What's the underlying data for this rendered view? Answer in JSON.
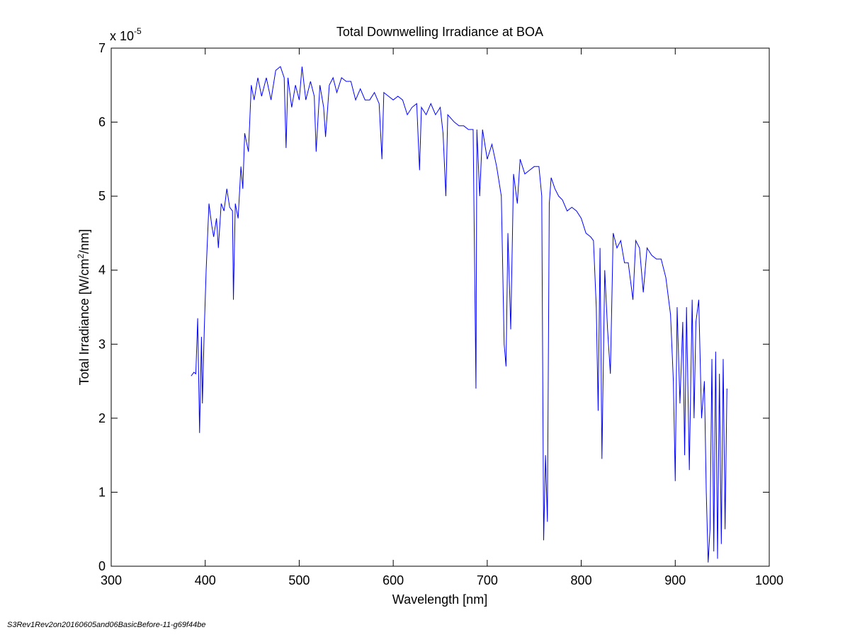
{
  "chart_data": {
    "type": "line",
    "title": "Total Downwelling Irradiance at BOA",
    "xlabel": "Wavelength [nm]",
    "ylabel": [
      "Total Irradiance [W/cm",
      "2",
      "/nm]"
    ],
    "y_multiplier": [
      "x 10",
      "-5"
    ],
    "footer": "S3Rev1Rev2on20160605and06BasicBefore-11-g69f44be",
    "color": "#0000ff",
    "xlim": [
      300,
      1000
    ],
    "xticks": [
      300,
      400,
      500,
      600,
      700,
      800,
      900,
      1000
    ],
    "ylim": [
      0,
      7
    ],
    "yticks": [
      0,
      1,
      2,
      3,
      4,
      5,
      6,
      7
    ],
    "x": [
      385,
      388,
      390,
      392,
      394,
      396,
      397,
      399,
      401,
      404,
      407,
      409,
      412,
      414,
      417,
      420,
      423,
      426,
      429,
      430,
      432,
      435,
      438,
      440,
      442,
      446,
      449,
      452,
      456,
      460,
      465,
      470,
      475,
      480,
      484,
      486,
      488,
      492,
      496,
      500,
      503,
      507,
      512,
      516,
      518,
      522,
      526,
      528,
      532,
      536,
      540,
      545,
      550,
      555,
      560,
      565,
      570,
      575,
      580,
      585,
      588,
      590,
      595,
      600,
      605,
      610,
      615,
      620,
      625,
      628,
      630,
      635,
      640,
      645,
      650,
      653,
      656,
      658,
      665,
      670,
      675,
      680,
      685,
      688,
      689,
      692,
      695,
      700,
      705,
      710,
      715,
      718,
      720,
      722,
      725,
      728,
      732,
      735,
      740,
      745,
      750,
      755,
      758,
      760,
      762,
      764,
      766,
      768,
      772,
      776,
      780,
      785,
      790,
      795,
      800,
      805,
      810,
      813,
      816,
      818,
      820,
      822,
      825,
      828,
      831,
      834,
      838,
      842,
      846,
      850,
      855,
      858,
      862,
      866,
      870,
      875,
      880,
      885,
      890,
      895,
      898,
      900,
      902,
      905,
      908,
      910,
      912,
      915,
      918,
      920,
      922,
      925,
      928,
      931,
      933,
      935,
      937,
      939,
      941,
      943,
      945,
      947,
      949,
      951,
      953,
      955
    ],
    "values": [
      2.57,
      2.62,
      2.6,
      3.35,
      1.8,
      3.1,
      2.2,
      3.2,
      4.0,
      4.9,
      4.6,
      4.45,
      4.7,
      4.3,
      4.9,
      4.8,
      5.1,
      4.85,
      4.8,
      3.6,
      4.9,
      4.7,
      5.4,
      5.1,
      5.85,
      5.6,
      6.5,
      6.3,
      6.6,
      6.35,
      6.6,
      6.3,
      6.7,
      6.75,
      6.6,
      5.65,
      6.6,
      6.2,
      6.5,
      6.3,
      6.75,
      6.3,
      6.55,
      6.35,
      5.6,
      6.5,
      6.2,
      5.8,
      6.5,
      6.6,
      6.4,
      6.6,
      6.55,
      6.55,
      6.3,
      6.45,
      6.3,
      6.3,
      6.4,
      6.25,
      5.5,
      6.4,
      6.35,
      6.3,
      6.35,
      6.3,
      6.1,
      6.2,
      6.25,
      5.35,
      6.2,
      6.1,
      6.25,
      6.1,
      6.2,
      5.85,
      5.0,
      6.1,
      6.0,
      5.95,
      5.95,
      5.9,
      5.9,
      2.4,
      5.9,
      5.0,
      5.9,
      5.5,
      5.7,
      5.4,
      5.0,
      3.0,
      2.7,
      4.5,
      3.2,
      5.3,
      4.9,
      5.5,
      5.3,
      5.35,
      5.4,
      5.4,
      5.0,
      0.35,
      1.5,
      0.6,
      4.9,
      5.25,
      5.1,
      5.0,
      4.95,
      4.8,
      4.85,
      4.8,
      4.7,
      4.5,
      4.45,
      4.4,
      3.5,
      2.1,
      4.3,
      1.45,
      4.0,
      3.2,
      2.6,
      4.5,
      4.3,
      4.4,
      4.1,
      4.1,
      3.6,
      4.4,
      4.3,
      3.7,
      4.3,
      4.2,
      4.15,
      4.15,
      3.9,
      3.4,
      2.5,
      1.15,
      3.5,
      2.2,
      3.3,
      1.5,
      3.5,
      1.3,
      3.6,
      2.0,
      3.3,
      3.6,
      2.0,
      2.5,
      1.0,
      0.05,
      0.5,
      2.8,
      0.2,
      2.9,
      0.1,
      2.6,
      0.3,
      2.8,
      0.5,
      2.4
    ]
  }
}
